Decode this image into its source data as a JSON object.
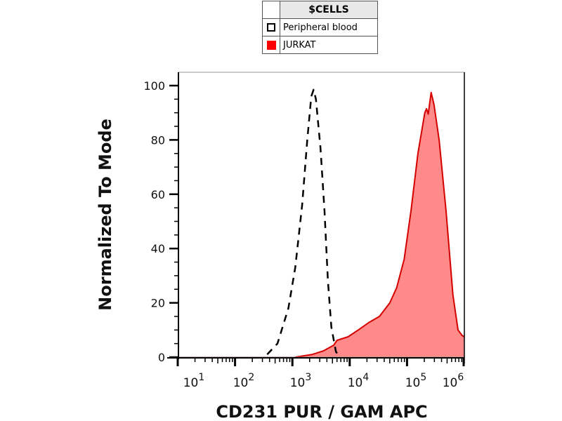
{
  "legend": {
    "title": "$CELLS",
    "entries": [
      {
        "label": "Peripheral blood",
        "style": "dashed-outline",
        "color": "#000000"
      },
      {
        "label": "JURKAT",
        "style": "filled",
        "color": "#ff0000"
      }
    ]
  },
  "chart_data": {
    "type": "area",
    "title": "",
    "xlabel": "CD231 PUR / GAM APC",
    "ylabel": "Normalized To Mode",
    "xscale": "log10",
    "xlim_log10": [
      1,
      6
    ],
    "ylim": [
      0,
      100
    ],
    "yticks": [
      0,
      20,
      40,
      60,
      80,
      100
    ],
    "xtick_labels": [
      {
        "base": "10",
        "exp": "1"
      },
      {
        "base": "10",
        "exp": "2"
      },
      {
        "base": "10",
        "exp": "3"
      },
      {
        "base": "10",
        "exp": "4"
      },
      {
        "base": "10",
        "exp": "5"
      },
      {
        "base": "10",
        "exp": "6"
      }
    ],
    "series": [
      {
        "name": "Peripheral blood",
        "color": "#000000",
        "fill": "none",
        "dash": true,
        "x_log10": [
          2.56,
          2.74,
          2.93,
          3.05,
          3.17,
          3.26,
          3.33,
          3.37,
          3.41,
          3.49,
          3.56,
          3.62,
          3.68,
          3.76,
          3.83
        ],
        "y": [
          1,
          5,
          18,
          33,
          56,
          80,
          96,
          98.5,
          95,
          77,
          54,
          28,
          11,
          2,
          0
        ]
      },
      {
        "name": "JURKAT",
        "color": "#d40000",
        "fill": "#ff8a8a",
        "dash": false,
        "x_log10": [
          3.05,
          3.35,
          3.54,
          3.72,
          3.78,
          3.97,
          4.15,
          4.33,
          4.52,
          4.7,
          4.82,
          4.95,
          5.07,
          5.19,
          5.31,
          5.34,
          5.37,
          5.42,
          5.47,
          5.56,
          5.68,
          5.8,
          5.89,
          5.96,
          6.0
        ],
        "y": [
          0,
          1,
          2.3,
          4.4,
          6.2,
          7.5,
          10,
          12.7,
          15,
          20,
          25.6,
          36,
          54,
          75,
          90,
          91.5,
          89.5,
          97.5,
          93,
          80,
          54,
          23,
          10,
          8,
          7.5
        ]
      }
    ]
  }
}
